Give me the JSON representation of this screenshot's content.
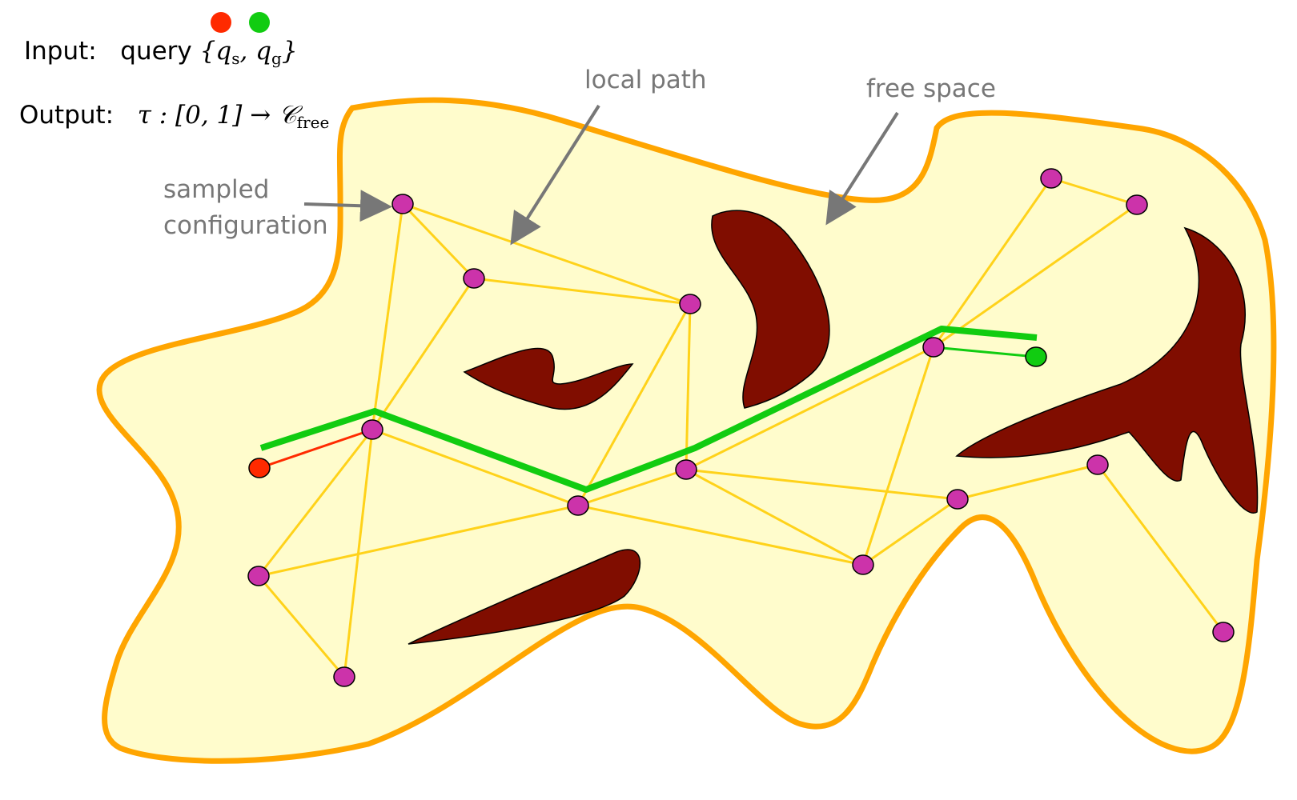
{
  "header": {
    "input_label": "Input:",
    "input_text": "query",
    "input_math": "{q",
    "input_sub_s": "s",
    "input_comma": ", q",
    "input_sub_g": "g",
    "input_close": "}",
    "output_label": "Output:",
    "output_math": "τ : [0, 1] → 𝒞",
    "output_sub": "free"
  },
  "annotations": {
    "sampled_line1": "sampled",
    "sampled_line2": "configuration",
    "local_path": "local path",
    "free_space": "free space"
  },
  "colors": {
    "free_space_fill": "#fffccc",
    "free_space_border": "#ffa500",
    "obstacle": "#800d00",
    "edge": "#ffd21a",
    "node": "#cc33aa",
    "start": "#ff2a00",
    "goal": "#11cc11",
    "path": "#11cc11",
    "annotation_text": "#777777"
  },
  "legend_dots": [
    "start",
    "goal"
  ]
}
